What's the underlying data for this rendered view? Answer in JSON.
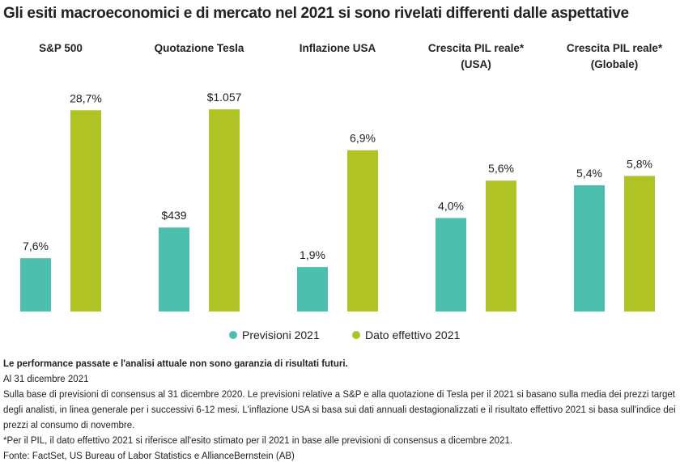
{
  "title": "Gli esiti macroeconomici e di mercato nel 2021 si sono rivelati differenti dalle aspettative",
  "chart_data": [
    {
      "type": "bar",
      "title": "S&P 500",
      "ylim": [
        0,
        30
      ],
      "series": [
        {
          "name": "Previsioni 2021",
          "color": "#4dbfae",
          "values": [
            7.6
          ],
          "value_labels": [
            "7,6%"
          ]
        },
        {
          "name": "Dato effettivo 2021",
          "color": "#afc424",
          "values": [
            28.7
          ],
          "value_labels": [
            "28,7%"
          ]
        }
      ]
    },
    {
      "type": "bar",
      "title": "Quotazione Tesla",
      "ylim": [
        0,
        1100
      ],
      "series": [
        {
          "color": "#4dbfae",
          "values": [
            439
          ],
          "value_labels": [
            "$439"
          ]
        },
        {
          "color": "#afc424",
          "values": [
            1057
          ],
          "value_labels": [
            "$1.057"
          ]
        }
      ]
    },
    {
      "type": "bar",
      "title": "Inflazione USA",
      "ylim": [
        0,
        9
      ],
      "series": [
        {
          "color": "#4dbfae",
          "values": [
            1.9
          ],
          "value_labels": [
            "1,9%"
          ]
        },
        {
          "color": "#afc424",
          "values": [
            6.9
          ],
          "value_labels": [
            "6,9%"
          ]
        }
      ]
    },
    {
      "type": "bar",
      "title": "Crescita PIL reale*\n(USA)",
      "ylim": [
        0,
        9
      ],
      "series": [
        {
          "color": "#4dbfae",
          "values": [
            4.0
          ],
          "value_labels": [
            "4,0%"
          ]
        },
        {
          "color": "#afc424",
          "values": [
            5.6
          ],
          "value_labels": [
            "5,6%"
          ]
        }
      ]
    },
    {
      "type": "bar",
      "title": "Crescita PIL reale*\n(Globale)",
      "ylim": [
        0,
        9
      ],
      "series": [
        {
          "color": "#4dbfae",
          "values": [
            5.4
          ],
          "value_labels": [
            "5,4%"
          ]
        },
        {
          "color": "#afc424",
          "values": [
            5.8
          ],
          "value_labels": [
            "5,8%"
          ]
        }
      ]
    }
  ],
  "notes": [
    "Le performance passate e l'analisi attuale non sono garanzia di risultati futuri.",
    "Al 31 dicembre 2021",
    "Sulla base di previsioni di consensus al 31 dicembre 2020. Le previsioni relative a S&P e alla quotazione di Tesla per il 2021 si basano sulla media dei prezzi target degli analisti, in linea generale per i successivi 6-12 mesi. L'inflazione USA si basa sui dati annuali destagionalizzati e il risultato effettivo 2021 si basa sull'indice dei prezzi al consumo di novembre.",
    "*Per il PIL, il dato effettivo 2021 si riferisce all'esito stimato per il 2021 in base alle previsioni di consensus a dicembre 2021.",
    "Fonte: FactSet, US Bureau of Labor Statistics e AllianceBernstein (AB)"
  ]
}
